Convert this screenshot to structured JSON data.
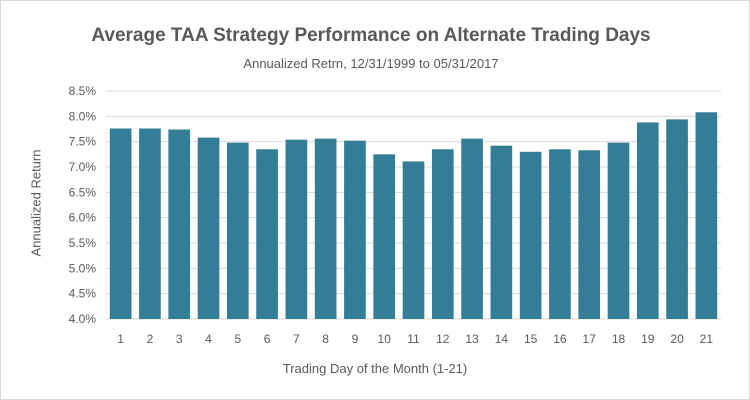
{
  "chart_data": {
    "type": "bar",
    "title": "Average TAA Strategy Performance on Alternate Trading Days",
    "subtitle": "Annualized Retrn, 12/31/1999 to 05/31/2017",
    "xlabel": "Trading Day of the Month (1-21)",
    "ylabel": "Annualized Return",
    "categories": [
      "1",
      "2",
      "3",
      "4",
      "5",
      "6",
      "7",
      "8",
      "9",
      "10",
      "11",
      "12",
      "13",
      "14",
      "15",
      "16",
      "17",
      "18",
      "19",
      "20",
      "21"
    ],
    "values": [
      7.76,
      7.76,
      7.74,
      7.58,
      7.48,
      7.35,
      7.54,
      7.56,
      7.52,
      7.25,
      7.11,
      7.35,
      7.56,
      7.42,
      7.3,
      7.35,
      7.33,
      7.48,
      7.88,
      7.94,
      8.08
    ],
    "ylim": [
      4.0,
      8.5
    ],
    "yticks": [
      "4.0%",
      "4.5%",
      "5.0%",
      "5.5%",
      "6.0%",
      "6.5%",
      "7.0%",
      "7.5%",
      "8.0%",
      "8.5%"
    ],
    "grid": true,
    "colors": {
      "bar": "#347d96",
      "grid": "#d9d9d9",
      "text": "#595959"
    }
  }
}
